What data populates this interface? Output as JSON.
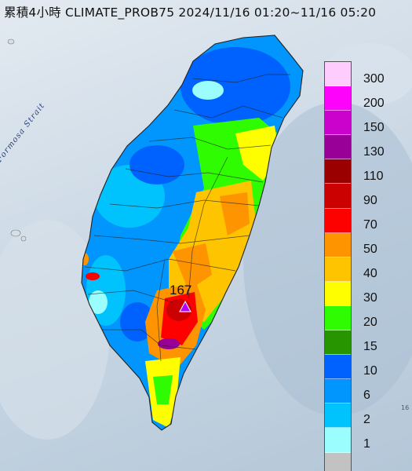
{
  "title": "累積4小時 CLIMATE_PROB75 2024/11/16 01:20~11/16 05:20",
  "sea_label": "Formosa Strait",
  "peak": {
    "value": "167",
    "marker": "triangle-marker-icon"
  },
  "corner_mark": "16",
  "legend": {
    "labels": [
      "300",
      "200",
      "150",
      "130",
      "110",
      "90",
      "70",
      "50",
      "40",
      "30",
      "20",
      "15",
      "10",
      "6",
      "2",
      "1"
    ],
    "colors": [
      "#fecdfd",
      "#fd03fc",
      "#cb02cc",
      "#990098",
      "#9a0000",
      "#cb0001",
      "#fd0000",
      "#fd9400",
      "#fec400",
      "#fefe00",
      "#2ffc00",
      "#269500",
      "#0062fe",
      "#0096fe",
      "#00c3fe",
      "#9bfdfd",
      "#c2c2c2"
    ]
  }
}
